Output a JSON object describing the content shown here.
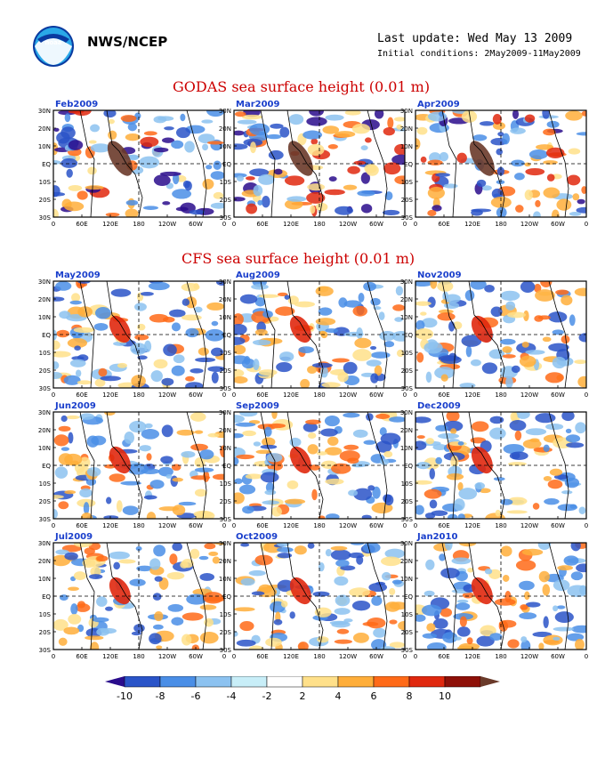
{
  "header": {
    "org": "NWS/NCEP",
    "last_update": "Last update: Wed May 13 2009",
    "initial_conditions": "Initial conditions: 2May2009-11May2009"
  },
  "logo_icon": "noaa-logo-icon",
  "colors": {
    "title": "#cc0000",
    "panel_label": "#1a3fcc"
  },
  "chart_data": [
    {
      "type": "heatmap",
      "title": "GODAS sea surface height (0.01 m)",
      "panels": [
        "Feb2009",
        "Mar2009",
        "Apr2009"
      ]
    },
    {
      "type": "heatmap",
      "title": "CFS sea surface height (0.01 m)",
      "panels": [
        "May2009",
        "Aug2009",
        "Nov2009",
        "Jun2009",
        "Sep2009",
        "Dec2009",
        "Jul2009",
        "Oct2009",
        "Jan2010"
      ]
    }
  ],
  "axes": {
    "y_ticks": [
      "30N",
      "20N",
      "10N",
      "EQ",
      "10S",
      "20S",
      "30S"
    ],
    "x_ticks": [
      "0",
      "60E",
      "120E",
      "180",
      "120W",
      "60W",
      "0"
    ],
    "lat_range": [
      -30,
      30
    ],
    "lon_range": [
      0,
      360
    ]
  },
  "colorbar": {
    "levels": [
      "-10",
      "-8",
      "-6",
      "-4",
      "-2",
      "2",
      "4",
      "6",
      "8",
      "10"
    ],
    "colors": [
      "#2a0c8c",
      "#2a54c8",
      "#4a8ee6",
      "#8cc2f0",
      "#c8eef8",
      "#ffffff",
      "#ffe08a",
      "#ffae3a",
      "#ff6a18",
      "#e0280e",
      "#8e1008",
      "#6a3a2a"
    ]
  }
}
